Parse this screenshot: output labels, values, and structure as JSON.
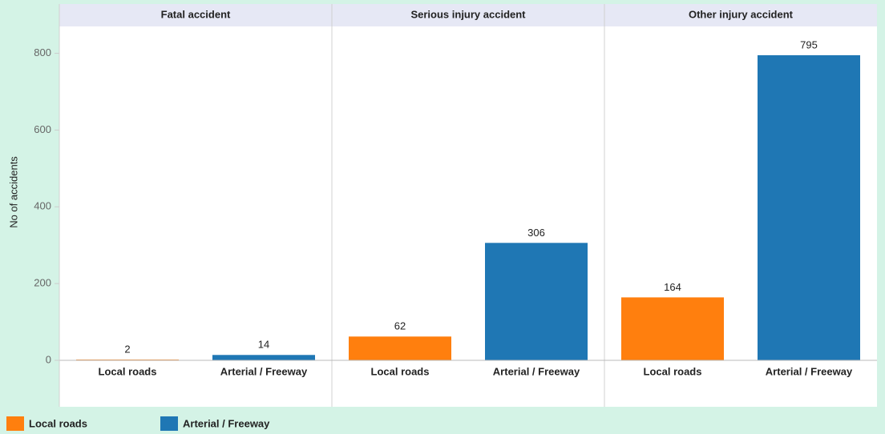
{
  "chart_data": {
    "type": "bar",
    "y_label": "No of accidents",
    "panels": [
      "Fatal accident",
      "Serious injury accident",
      "Other injury accident"
    ],
    "series": [
      {
        "name": "Local roads",
        "color": "#ff7f0e",
        "values": [
          2,
          62,
          164
        ]
      },
      {
        "name": "Arterial / Freeway",
        "color": "#1f77b4",
        "values": [
          14,
          306,
          795
        ]
      }
    ],
    "ylim": [
      0,
      870
    ],
    "yticks": [
      0,
      200,
      400,
      600,
      800
    ],
    "legend": "bottom-left"
  }
}
